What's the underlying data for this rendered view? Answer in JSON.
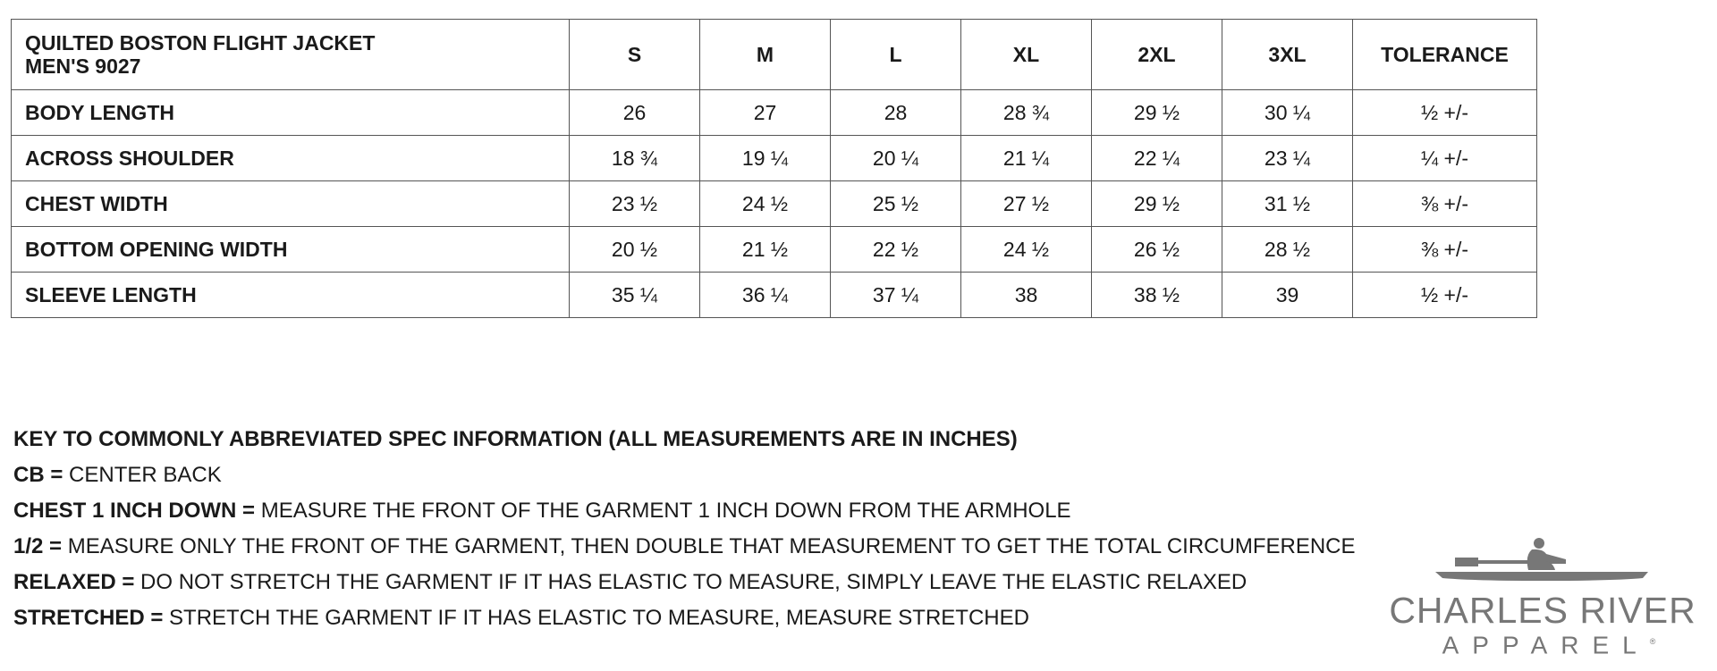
{
  "table": {
    "title_line1": "QUILTED BOSTON FLIGHT JACKET",
    "title_line2": "MEN'S 9027",
    "headers": [
      "S",
      "M",
      "L",
      "XL",
      "2XL",
      "3XL",
      "TOLERANCE"
    ],
    "rows": [
      {
        "label": "BODY LENGTH",
        "values": [
          "26",
          "27",
          "28",
          "28 ¾",
          "29 ½",
          "30 ¼",
          "½ +/-"
        ]
      },
      {
        "label": "ACROSS SHOULDER",
        "values": [
          "18 ¾",
          "19 ¼",
          "20 ¼",
          "21 ¼",
          "22 ¼",
          "23 ¼",
          "¼ +/-"
        ]
      },
      {
        "label": "CHEST WIDTH",
        "values": [
          "23  ½",
          "24  ½",
          "25  ½",
          "27  ½",
          "29  ½",
          "31  ½",
          "⅜ +/-"
        ]
      },
      {
        "label": "BOTTOM OPENING WIDTH",
        "values": [
          "20  ½",
          "21  ½",
          "22  ½",
          "24  ½",
          "26  ½",
          "28  ½",
          "⅜ +/-"
        ]
      },
      {
        "label": "SLEEVE LENGTH",
        "values": [
          "35 ¼",
          "36 ¼",
          "37 ¼",
          "38",
          "38 ½",
          "39",
          "½ +/-"
        ]
      }
    ]
  },
  "key": {
    "title": "KEY TO COMMONLY ABBREVIATED SPEC INFORMATION (ALL MEASUREMENTS ARE IN INCHES)",
    "items": [
      {
        "term": "CB =",
        "definition": " CENTER BACK"
      },
      {
        "term": "CHEST 1 INCH DOWN =",
        "definition": " MEASURE THE FRONT OF THE GARMENT 1 INCH DOWN FROM THE ARMHOLE"
      },
      {
        "term": "1/2 =",
        "definition": " MEASURE ONLY THE FRONT OF THE GARMENT, THEN DOUBLE THAT MEASUREMENT TO GET THE TOTAL CIRCUMFERENCE"
      },
      {
        "term": "RELAXED =",
        "definition": " DO NOT STRETCH THE GARMENT IF IT HAS ELASTIC TO MEASURE, SIMPLY LEAVE THE ELASTIC RELAXED"
      },
      {
        "term": "STRETCHED =",
        "definition": " STRETCH THE GARMENT IF IT HAS ELASTIC TO MEASURE, MEASURE STRETCHED"
      }
    ]
  },
  "logo": {
    "line1": "CHARLES RIVER",
    "line2": "APPAREL",
    "mark": "®",
    "color": "#777777"
  }
}
